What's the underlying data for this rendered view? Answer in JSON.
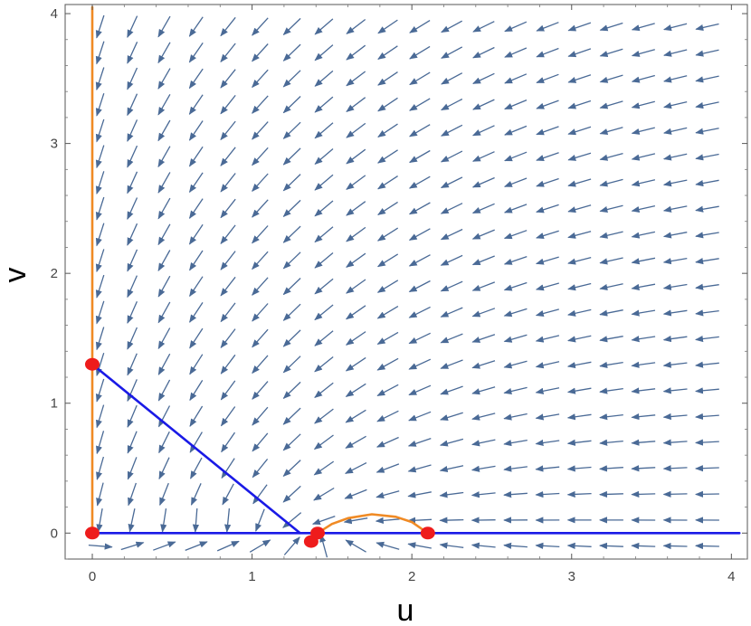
{
  "chart_data": {
    "type": "stream-vector-field",
    "xlabel": "u",
    "ylabel": "v",
    "xlim": [
      -0.17,
      4.1
    ],
    "ylim": [
      -0.2,
      4.07
    ],
    "xticks": [
      0,
      1,
      2,
      3,
      4
    ],
    "yticks": [
      0,
      1,
      2,
      3,
      4
    ],
    "grid": false,
    "frame": true,
    "colors": {
      "arrow": "#4a6a96",
      "nullcline_blue": "#1a1ae6",
      "nullcline_orange": "#f08a24",
      "equilibrium": "#ee1c1c"
    },
    "field_model": {
      "u_prey_capacity_segment": [
        [
          0,
          1.3
        ],
        [
          1.3,
          0
        ]
      ],
      "note": ""
    },
    "nullclines": {
      "blue": [
        {
          "points": [
            [
              0,
              1.3
            ],
            [
              1.3,
              0
            ]
          ]
        },
        {
          "points": [
            [
              0,
              0
            ],
            [
              4.05,
              0
            ]
          ]
        }
      ],
      "orange": [
        {
          "points": [
            [
              0,
              0
            ],
            [
              0,
              4.05
            ]
          ]
        },
        {
          "points": [
            [
              1.41,
              0
            ],
            [
              1.5,
              0.07
            ],
            [
              1.6,
              0.115
            ],
            [
              1.75,
              0.145
            ],
            [
              1.9,
              0.125
            ],
            [
              2.0,
              0.085
            ],
            [
              2.1,
              0
            ]
          ]
        }
      ]
    },
    "equilibria": [
      {
        "u": 0,
        "v": 1.3
      },
      {
        "u": 0,
        "v": 0
      },
      {
        "u": 1.37,
        "v": -0.065
      },
      {
        "u": 1.41,
        "v": 0
      },
      {
        "u": 2.1,
        "v": 0
      }
    ]
  }
}
